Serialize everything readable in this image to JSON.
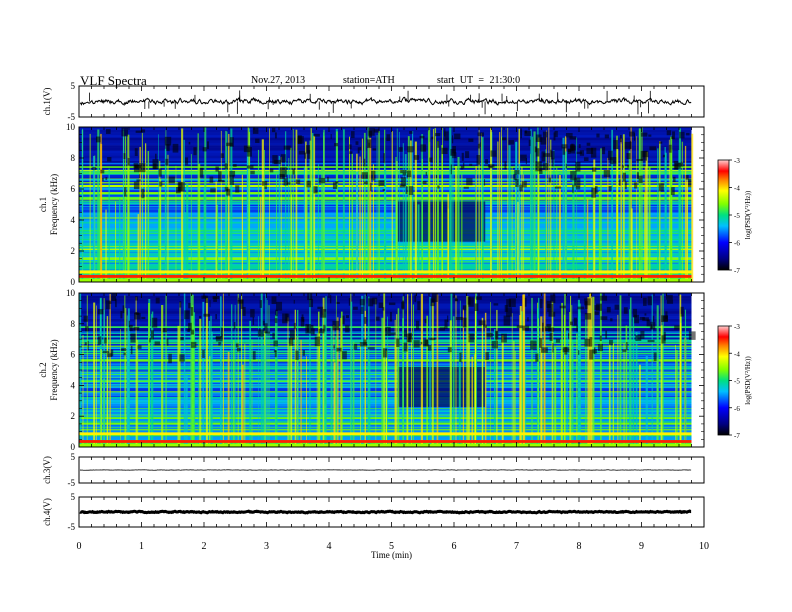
{
  "header": {
    "title": "VLF  Spectra",
    "date": "Nov.27, 2013",
    "station": "station=ATH",
    "start": "start  UT =   21:30:0"
  },
  "chart_data": [
    {
      "type": "line",
      "panel": "ch1-waveform",
      "ylabel": "ch.1(V)",
      "ylim": [
        -5,
        5
      ],
      "yticks": [
        "5",
        "-5"
      ],
      "x_range_min": [
        0,
        9.8
      ],
      "series": [
        {
          "name": "",
          "mean": 0,
          "noise_amplitude": 0.6,
          "spike_count": 40
        }
      ]
    },
    {
      "type": "heatmap",
      "panel": "ch1-spectrogram",
      "ylabel": "ch.1\nFrequency (kHz)",
      "ylim": [
        0,
        10
      ],
      "yticks": [
        "0",
        "2",
        "4",
        "6",
        "8",
        "10"
      ],
      "x_range_min": [
        0,
        9.8
      ],
      "color_scale": {
        "label": "log(PSD(V²/Hz))",
        "range": [
          -7,
          -3
        ],
        "ticks": [
          "-3",
          "-4",
          "-5",
          "-6",
          "-7"
        ]
      },
      "features": {
        "strong_bands_khz": [
          0.3,
          0.6
        ],
        "quiet_interval_min": [
          5.1,
          6.5
        ],
        "colors": {
          "low": "#000066",
          "mid": "#00cc66",
          "high": "#ff2020"
        }
      }
    },
    {
      "type": "heatmap",
      "panel": "ch2-spectrogram",
      "ylabel": "ch.2\nFrequency (kHz)",
      "ylim": [
        0,
        10
      ],
      "yticks": [
        "0",
        "2",
        "4",
        "6",
        "8",
        "10"
      ],
      "x_range_min": [
        0,
        9.8
      ],
      "color_scale": {
        "label": "log(PSD(V²/Hz))",
        "range": [
          -7,
          -3
        ],
        "ticks": [
          "-3",
          "-4",
          "-5",
          "-6",
          "-7"
        ]
      },
      "features": {
        "strong_bands_khz": [
          0.3,
          0.8
        ],
        "quiet_interval_min": [
          5.1,
          6.5
        ]
      }
    },
    {
      "type": "line",
      "panel": "ch3-waveform",
      "ylabel": "ch.3(V)",
      "ylim": [
        -5,
        5
      ],
      "yticks": [
        "5",
        "-5"
      ],
      "x_range_min": [
        0,
        9.8
      ],
      "series": [
        {
          "name": "",
          "mean": 0,
          "noise_amplitude": 0.05
        }
      ]
    },
    {
      "type": "line",
      "panel": "ch4-waveform",
      "ylabel": "ch.4(V)",
      "ylim": [
        -5,
        5
      ],
      "yticks": [
        "5",
        "-5"
      ],
      "x_range_min": [
        0,
        9.8
      ],
      "series": [
        {
          "name": "",
          "mean": 0,
          "noise_amplitude": 0.15
        }
      ]
    }
  ],
  "xaxis": {
    "label": "Time  (min)",
    "ticks": [
      "0",
      "1",
      "2",
      "3",
      "4",
      "5",
      "6",
      "7",
      "8",
      "9",
      "10"
    ],
    "range": [
      0,
      10
    ]
  },
  "colors": {
    "axis": "#000000",
    "background": "#ffffff",
    "trace": "#000000"
  }
}
